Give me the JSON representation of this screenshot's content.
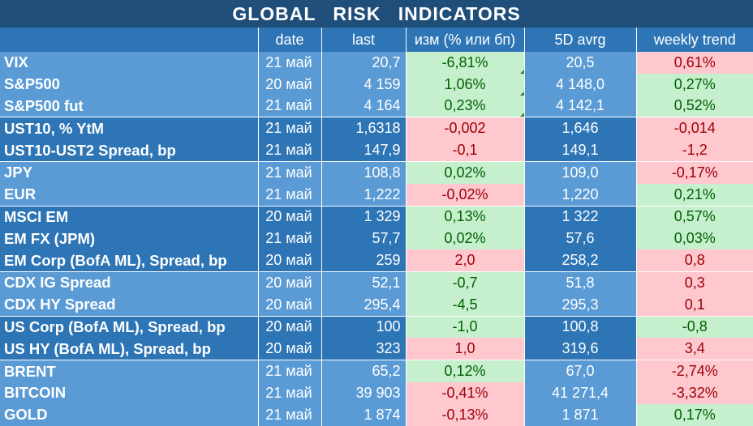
{
  "title": "GLOBAL   RISK   INDICATORS",
  "columns": [
    "",
    "date",
    "last",
    "изм (% или бп)",
    "5D avrg",
    "weekly trend"
  ],
  "groups": [
    {
      "shade": "light",
      "rows": [
        {
          "name": "VIX",
          "date": "21 май",
          "last": "20,7",
          "chg": "-6,81%",
          "chg_color": "green",
          "avg": "20,5",
          "trend": "0,61%",
          "trend_color": "red"
        },
        {
          "name": "S&P500",
          "date": "20 май",
          "last": "4 159",
          "chg": "1,06%",
          "chg_color": "green",
          "avg": "4 148,0",
          "trend": "0,27%",
          "trend_color": "green"
        },
        {
          "name": "S&P500 fut",
          "date": "21 май",
          "last": "4 164",
          "chg": "0,23%",
          "chg_color": "green",
          "avg": "4 142,1",
          "trend": "0,52%",
          "trend_color": "green"
        }
      ]
    },
    {
      "shade": "dark",
      "rows": [
        {
          "name": "UST10, % YtM",
          "date": "21 май",
          "last": "1,6318",
          "chg": "-0,002",
          "chg_color": "red",
          "avg": "1,646",
          "trend": "-0,014",
          "trend_color": "red"
        },
        {
          "name": "UST10-UST2 Spread, bp",
          "date": "21 май",
          "last": "147,9",
          "chg": "-0,1",
          "chg_color": "red",
          "avg": "149,1",
          "trend": "-1,2",
          "trend_color": "red"
        }
      ]
    },
    {
      "shade": "light",
      "rows": [
        {
          "name": "JPY",
          "date": "21 май",
          "last": "108,8",
          "chg": "0,02%",
          "chg_color": "green",
          "avg": "109,0",
          "trend": "-0,17%",
          "trend_color": "red"
        },
        {
          "name": "EUR",
          "date": "21 май",
          "last": "1,222",
          "chg": "-0,02%",
          "chg_color": "red",
          "avg": "1,220",
          "trend": "0,21%",
          "trend_color": "green"
        }
      ]
    },
    {
      "shade": "dark",
      "rows": [
        {
          "name": "MSCI EM",
          "date": "20 май",
          "last": "1 329",
          "chg": "0,13%",
          "chg_color": "green",
          "avg": "1 322",
          "trend": "0,57%",
          "trend_color": "green"
        },
        {
          "name": "EM FX (JPM)",
          "date": "21 май",
          "last": "57,7",
          "chg": "0,02%",
          "chg_color": "green",
          "avg": "57,6",
          "trend": "0,03%",
          "trend_color": "green"
        },
        {
          "name": "EM Corp (BofA ML), Spread, bp",
          "date": "20 май",
          "last": "259",
          "chg": "2,0",
          "chg_color": "red",
          "avg": "258,2",
          "trend": "0,8",
          "trend_color": "red"
        }
      ]
    },
    {
      "shade": "light",
      "rows": [
        {
          "name": "CDX IG Spread",
          "date": "20 май",
          "last": "52,1",
          "chg": "-0,7",
          "chg_color": "green",
          "avg": "51,8",
          "trend": "0,3",
          "trend_color": "red"
        },
        {
          "name": "CDX HY Spread",
          "date": "20 май",
          "last": "295,4",
          "chg": "-4,5",
          "chg_color": "green",
          "avg": "295,3",
          "trend": "0,1",
          "trend_color": "red"
        }
      ]
    },
    {
      "shade": "dark",
      "rows": [
        {
          "name": "US Corp (BofA ML), Spread, bp",
          "date": "20 май",
          "last": "100",
          "chg": "-1,0",
          "chg_color": "green",
          "avg": "100,8",
          "trend": "-0,8",
          "trend_color": "green"
        },
        {
          "name": "US HY (BofA ML), Spread, bp",
          "date": "20 май",
          "last": "323",
          "chg": "1,0",
          "chg_color": "red",
          "avg": "319,6",
          "trend": "3,4",
          "trend_color": "red"
        }
      ]
    },
    {
      "shade": "light",
      "rows": [
        {
          "name": "BRENT",
          "date": "21 май",
          "last": "65,2",
          "chg": "0,12%",
          "chg_color": "green",
          "avg": "67,0",
          "trend": "-2,74%",
          "trend_color": "red"
        },
        {
          "name": "BITCOIN",
          "date": "21 май",
          "last": "39 903",
          "chg": "-0,41%",
          "chg_color": "red",
          "avg": "41 271,4",
          "trend": "-3,32%",
          "trend_color": "red"
        },
        {
          "name": "GOLD",
          "date": "21 май",
          "last": "1 874",
          "chg": "-0,13%",
          "chg_color": "red",
          "avg": "1 871",
          "trend": "0,17%",
          "trend_color": "green"
        }
      ]
    }
  ],
  "colors": {
    "header_dark": "#1F4E79",
    "row_dark": "#2E75B6",
    "row_light": "#5B9BD5",
    "pos_bg": "#C6EFCE",
    "pos_text": "#006100",
    "neg_bg": "#FFC7CE",
    "neg_text": "#9C0006"
  }
}
